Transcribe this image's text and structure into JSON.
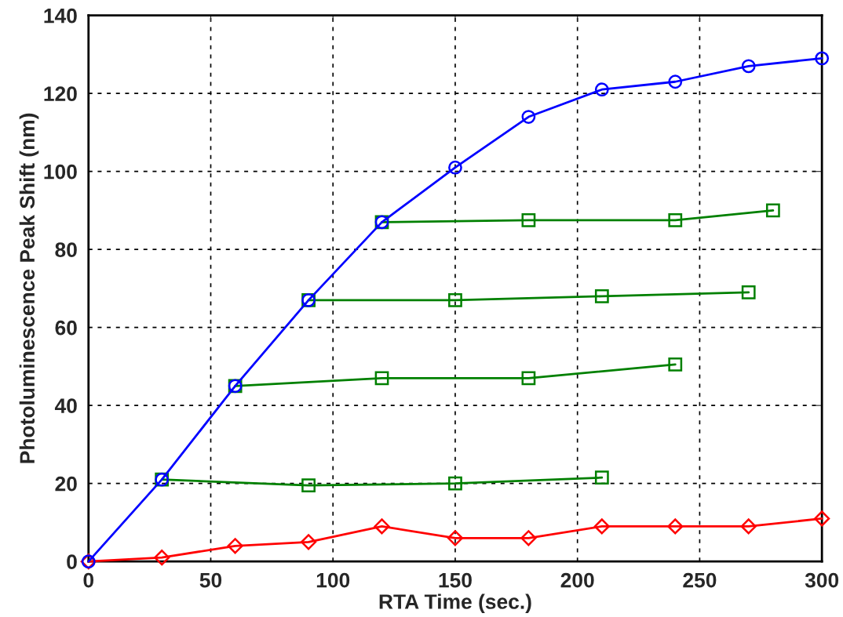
{
  "chart_data": {
    "type": "line",
    "xlabel": "RTA Time (sec.)",
    "ylabel": "Photoluminescence Peak Shift (nm)",
    "xlim": [
      0,
      300
    ],
    "xticks": [
      0,
      50,
      100,
      150,
      200,
      250,
      300
    ],
    "ylim": [
      0,
      140
    ],
    "yticks": [
      0,
      20,
      40,
      60,
      80,
      100,
      120,
      140
    ],
    "grid": true,
    "line_style": "solid",
    "series": [
      {
        "color": "#0000ff",
        "marker": "circle",
        "x": [
          0,
          30,
          60,
          90,
          120,
          150,
          180,
          210,
          240,
          270,
          300
        ],
        "values": [
          0,
          21,
          45,
          67,
          87,
          101,
          114,
          121,
          123,
          127,
          129
        ]
      },
      {
        "color": "#008000",
        "marker": "square",
        "x": [
          30,
          90,
          150,
          210
        ],
        "values": [
          21,
          19.5,
          20,
          21.5
        ]
      },
      {
        "color": "#008000",
        "marker": "square",
        "x": [
          60,
          120,
          180,
          240
        ],
        "values": [
          45,
          47,
          47,
          50.5
        ]
      },
      {
        "color": "#008000",
        "marker": "square",
        "x": [
          90,
          150,
          210,
          270
        ],
        "values": [
          67,
          67,
          68,
          69
        ]
      },
      {
        "color": "#008000",
        "marker": "square",
        "x": [
          120,
          180,
          240,
          280
        ],
        "values": [
          87,
          87.5,
          87.5,
          90
        ]
      },
      {
        "color": "#ff0000",
        "marker": "diamond",
        "x": [
          0,
          30,
          60,
          90,
          120,
          150,
          180,
          210,
          240,
          270,
          300
        ],
        "values": [
          0,
          1,
          4,
          5,
          9,
          6,
          6,
          9,
          9,
          9,
          11
        ]
      }
    ]
  }
}
